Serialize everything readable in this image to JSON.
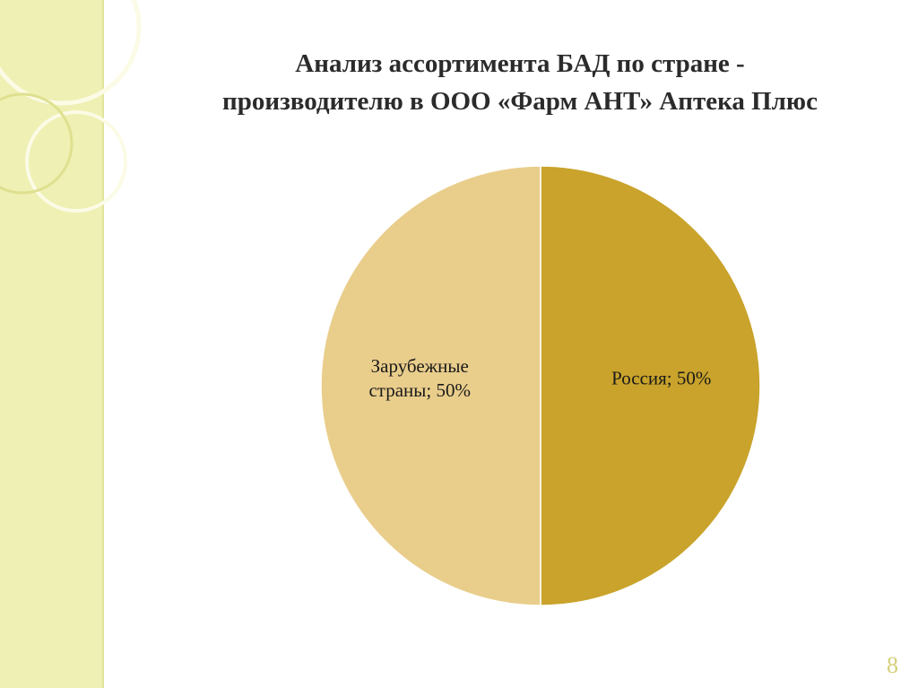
{
  "chart_data": {
    "type": "pie",
    "title": [
      "Анализ ассортимента БАД по стране -",
      "производителю в ООО «Фарм АНТ» Аптека Плюс"
    ],
    "categories": [
      "Россия",
      "Зарубежные страны"
    ],
    "values": [
      50,
      50
    ],
    "value_labels": [
      "Россия; 50%",
      "Зарубежные страны; 50%"
    ],
    "colors": [
      "#c9a32b",
      "#e9cd8b"
    ]
  },
  "slide": {
    "page_number": "8"
  }
}
